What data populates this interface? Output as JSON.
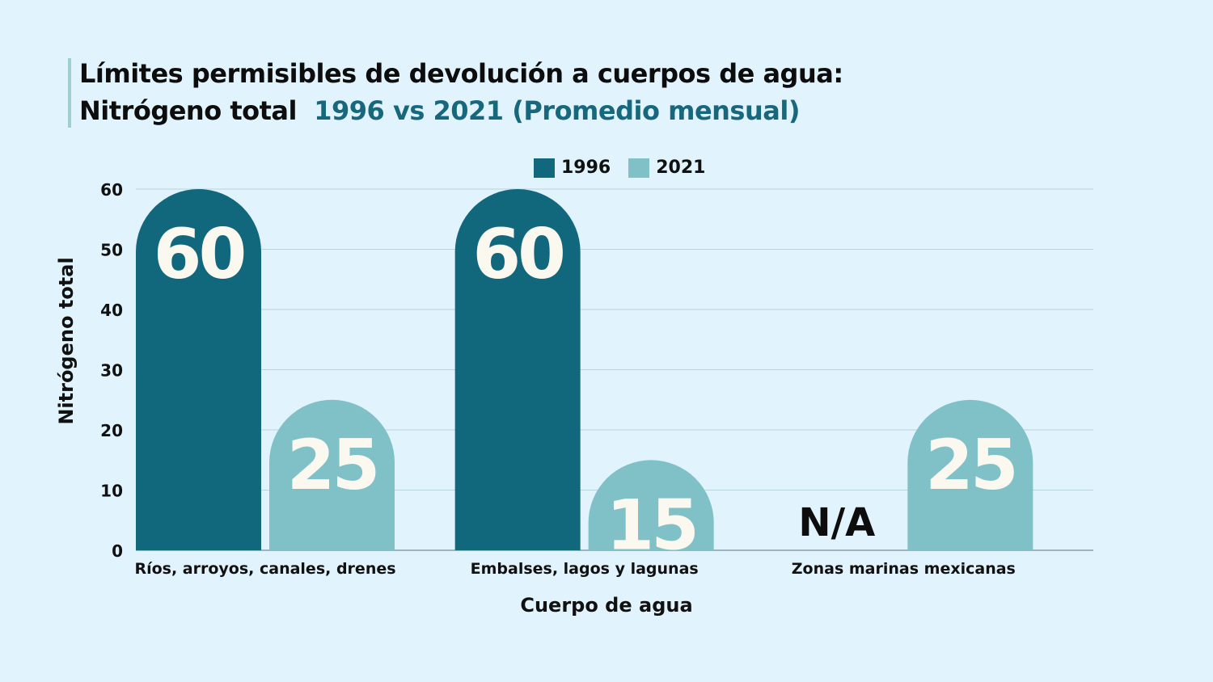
{
  "title": {
    "line1": "Límites permisibles de devolución a cuerpos de agua:",
    "line2_black": "Nitrógeno total",
    "line2_accent": "1996 vs 2021 (Promedio mensual)"
  },
  "colors": {
    "series_1996": "#11687c",
    "series_2021": "#80c1c7",
    "background": "#e1f3fc",
    "accent": "#17687d"
  },
  "chart_data": {
    "type": "bar",
    "title": "Límites permisibles de devolución a cuerpos de agua: Nitrógeno total 1996 vs 2021 (Promedio mensual)",
    "xlabel": "Cuerpo de agua",
    "ylabel": "Nitrógeno total",
    "categories": [
      "Ríos, arroyos, canales, drenes",
      "Embalses, lagos y lagunas",
      "Zonas marinas mexicanas"
    ],
    "series": [
      {
        "name": "1996",
        "values": [
          60,
          60,
          null
        ],
        "labels": [
          "60",
          "60",
          "N/A"
        ]
      },
      {
        "name": "2021",
        "values": [
          25,
          15,
          25
        ],
        "labels": [
          "25",
          "15",
          "25"
        ]
      }
    ],
    "ylim": [
      0,
      60
    ],
    "yticks": [
      0,
      10,
      20,
      30,
      40,
      50,
      60
    ],
    "grid": true,
    "legend": "top-center"
  }
}
